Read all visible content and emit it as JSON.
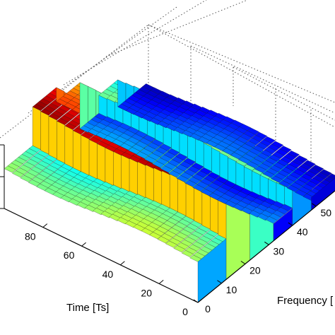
{
  "chart_data": {
    "type": "surface",
    "colormap": "jet",
    "view": "3d-perspective",
    "grid": "dotted",
    "x_axis": {
      "label": "Frequency [",
      "ticks": [
        0,
        10,
        20,
        30,
        40,
        50
      ],
      "range": [
        0,
        60
      ]
    },
    "y_axis": {
      "label": "Time [Ts]",
      "ticks": [
        0,
        20,
        40,
        60,
        80
      ],
      "range": [
        0,
        100
      ]
    },
    "z_axis": {
      "label": "",
      "ticks": []
    },
    "bands": [
      {
        "freq_range": [
          0,
          12
        ],
        "level": 0.48,
        "note": "partial band, cut off at left"
      },
      {
        "freq_range": [
          12,
          22
        ],
        "level": 0.9
      },
      {
        "freq_range": [
          22,
          32
        ],
        "level": 0.72
      },
      {
        "freq_range": [
          32,
          40
        ],
        "level": 0.2,
        "note": "low valley"
      },
      {
        "freq_range": [
          40,
          48
        ],
        "level": 0.45
      },
      {
        "freq_range": [
          48,
          60
        ],
        "level": 0.15
      }
    ]
  }
}
